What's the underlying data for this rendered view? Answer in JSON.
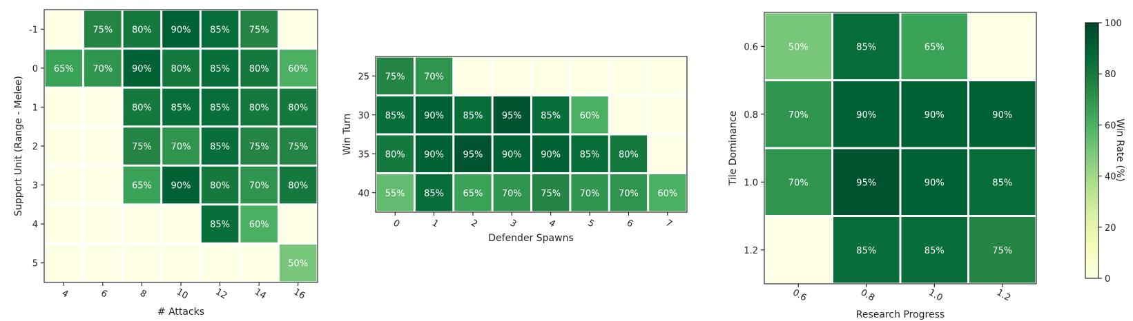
{
  "chart_data": [
    {
      "type": "heatmap",
      "xlabel": "# Attacks",
      "ylabel": "Support Unit (Range - Melee)",
      "x": [
        "4",
        "6",
        "8",
        "10",
        "12",
        "14",
        "16"
      ],
      "y": [
        "-1",
        "0",
        "1",
        "2",
        "3",
        "4",
        "5"
      ],
      "values": [
        [
          null,
          75,
          80,
          90,
          85,
          75,
          null
        ],
        [
          65,
          70,
          90,
          80,
          85,
          80,
          60
        ],
        [
          null,
          null,
          80,
          85,
          85,
          80,
          80
        ],
        [
          null,
          null,
          75,
          70,
          85,
          75,
          75
        ],
        [
          null,
          null,
          65,
          90,
          80,
          70,
          80
        ],
        [
          null,
          null,
          null,
          null,
          85,
          60,
          null
        ],
        [
          null,
          null,
          null,
          null,
          null,
          null,
          50
        ]
      ],
      "value_suffix": "%"
    },
    {
      "type": "heatmap",
      "xlabel": "Defender Spawns",
      "ylabel": "Win Turn",
      "x": [
        "0",
        "1",
        "2",
        "3",
        "4",
        "5",
        "6",
        "7"
      ],
      "y": [
        "25",
        "30",
        "35",
        "40"
      ],
      "values": [
        [
          75,
          70,
          null,
          null,
          null,
          null,
          null,
          null
        ],
        [
          85,
          90,
          85,
          95,
          85,
          60,
          null,
          null
        ],
        [
          80,
          90,
          95,
          90,
          90,
          85,
          80,
          null
        ],
        [
          55,
          85,
          65,
          70,
          75,
          70,
          70,
          60
        ]
      ],
      "value_suffix": "%"
    },
    {
      "type": "heatmap",
      "xlabel": "Research Progress",
      "ylabel": "Tile Dominance",
      "x": [
        "0.6",
        "0.8",
        "1.0",
        "1.2"
      ],
      "y": [
        "0.6",
        "0.8",
        "1.0",
        "1.2"
      ],
      "values": [
        [
          50,
          85,
          65,
          null
        ],
        [
          70,
          90,
          90,
          90
        ],
        [
          70,
          95,
          90,
          85
        ],
        [
          null,
          85,
          85,
          75
        ]
      ],
      "value_suffix": "%"
    }
  ],
  "colorbar": {
    "label": "Win Rate (%)",
    "ticks": [
      "0",
      "20",
      "40",
      "60",
      "80",
      "100"
    ],
    "vmin": 0,
    "vmax": 100,
    "colormap": "YlGn",
    "stops": [
      "#ffffe5",
      "#f7fcb9",
      "#d9f0a3",
      "#addd8e",
      "#78c679",
      "#41ab5d",
      "#238443",
      "#006837",
      "#004529"
    ]
  }
}
